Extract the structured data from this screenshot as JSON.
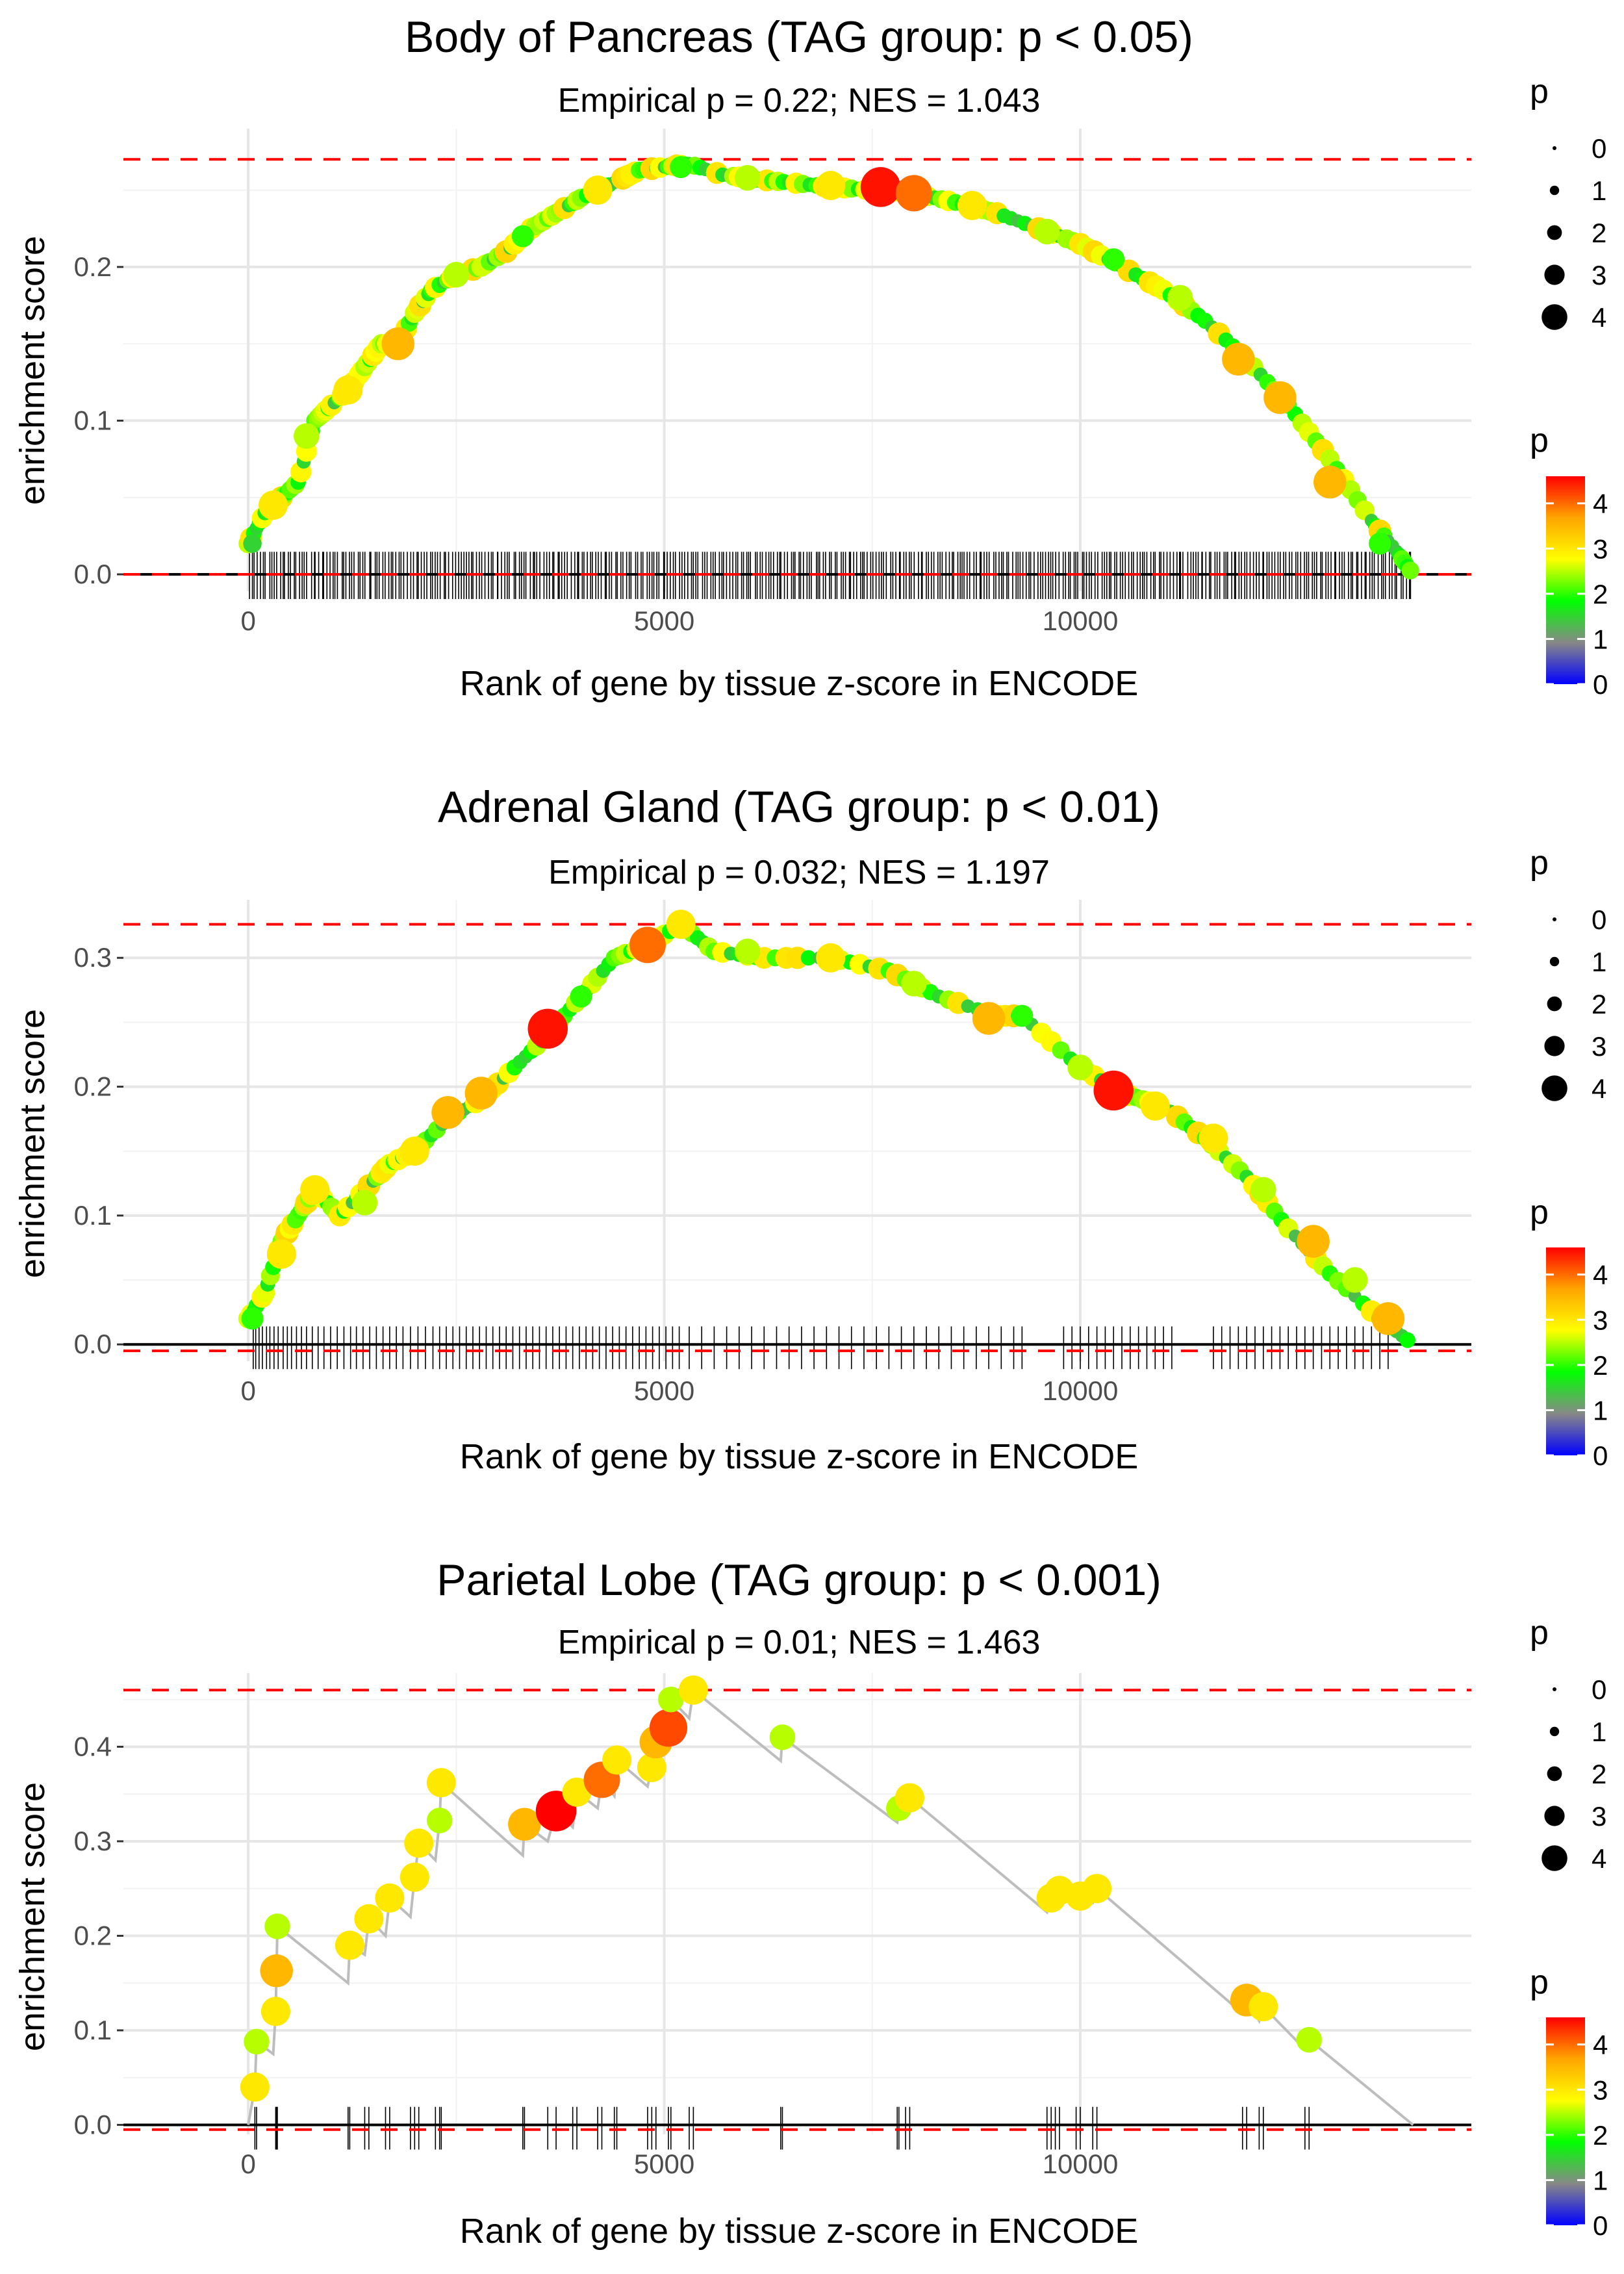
{
  "legend": {
    "size_title": "p",
    "size_levels": [
      "0",
      "1",
      "2",
      "3",
      "4"
    ],
    "color_title": "p",
    "color_ticks": [
      "0",
      "1",
      "2",
      "3",
      "4"
    ],
    "color_range": [
      0,
      4.6
    ],
    "colors": [
      "#0000ff",
      "#888888",
      "#00ff00",
      "#ffff00",
      "#ffa500",
      "#ff0000"
    ]
  },
  "chart_data": [
    {
      "type": "scatter",
      "title": "Body of Pancreas (TAG group: p < 0.05)",
      "subtitle": "Empirical p = 0.22; NES = 1.043",
      "xlabel": "Rank of gene by tissue z-score in ENCODE",
      "ylabel": "enrichment score",
      "xlim": [
        -1500,
        14700
      ],
      "ylim": [
        -0.011,
        0.29
      ],
      "x_ticks": [
        0,
        5000,
        10000
      ],
      "x_tick_labels": [
        "0",
        "5000",
        "10000"
      ],
      "y_ticks": [
        0.0,
        0.1,
        0.2
      ],
      "y_tick_labels": [
        "0.0",
        "0.1",
        "0.2"
      ],
      "max_line": 0.27,
      "min_line": 0.0,
      "curve": [
        [
          0,
          0.02
        ],
        [
          200,
          0.04
        ],
        [
          400,
          0.05
        ],
        [
          600,
          0.06
        ],
        [
          800,
          0.1
        ],
        [
          1000,
          0.11
        ],
        [
          1200,
          0.12
        ],
        [
          1400,
          0.135
        ],
        [
          1600,
          0.15
        ],
        [
          1800,
          0.15
        ],
        [
          2000,
          0.17
        ],
        [
          2200,
          0.185
        ],
        [
          2500,
          0.195
        ],
        [
          2800,
          0.2
        ],
        [
          3100,
          0.21
        ],
        [
          3400,
          0.225
        ],
        [
          3700,
          0.235
        ],
        [
          4000,
          0.245
        ],
        [
          4400,
          0.255
        ],
        [
          4700,
          0.263
        ],
        [
          5000,
          0.265
        ],
        [
          5300,
          0.267
        ],
        [
          5700,
          0.26
        ],
        [
          6100,
          0.257
        ],
        [
          6500,
          0.255
        ],
        [
          7000,
          0.252
        ],
        [
          7500,
          0.25
        ],
        [
          8000,
          0.248
        ],
        [
          8500,
          0.242
        ],
        [
          9000,
          0.235
        ],
        [
          9500,
          0.225
        ],
        [
          10000,
          0.215
        ],
        [
          10500,
          0.2
        ],
        [
          11000,
          0.185
        ],
        [
          11500,
          0.165
        ],
        [
          12000,
          0.14
        ],
        [
          12500,
          0.11
        ],
        [
          13000,
          0.075
        ],
        [
          13500,
          0.035
        ],
        [
          13800,
          0.015
        ],
        [
          14000,
          0.0
        ]
      ],
      "points": [
        [
          50,
          0.02,
          1.5
        ],
        [
          300,
          0.045,
          3
        ],
        [
          700,
          0.09,
          2.5
        ],
        [
          1200,
          0.12,
          3
        ],
        [
          1800,
          0.15,
          3.5
        ],
        [
          2500,
          0.195,
          2.5
        ],
        [
          3300,
          0.22,
          2
        ],
        [
          4200,
          0.25,
          3
        ],
        [
          5200,
          0.265,
          2
        ],
        [
          6000,
          0.258,
          2.5
        ],
        [
          7000,
          0.253,
          3
        ],
        [
          7600,
          0.252,
          4.5
        ],
        [
          8000,
          0.248,
          4
        ],
        [
          8700,
          0.24,
          3
        ],
        [
          9600,
          0.223,
          2.5
        ],
        [
          10400,
          0.205,
          2
        ],
        [
          11200,
          0.18,
          2.5
        ],
        [
          11900,
          0.14,
          3.5
        ],
        [
          12400,
          0.115,
          3.5
        ],
        [
          13000,
          0.06,
          3.5
        ],
        [
          13600,
          0.02,
          2
        ]
      ],
      "ticks_note": "dense gene hits from 0 to 14000",
      "hits_range": [
        0,
        14000
      ],
      "hits_count": 420
    },
    {
      "type": "scatter",
      "title": "Adrenal Gland (TAG group: p < 0.01)",
      "subtitle": "Empirical p = 0.032; NES = 1.197",
      "xlabel": "Rank of gene by tissue z-score in ENCODE",
      "ylabel": "enrichment score",
      "xlim": [
        -1500,
        14700
      ],
      "ylim": [
        -0.013,
        0.345
      ],
      "x_ticks": [
        0,
        5000,
        10000
      ],
      "x_tick_labels": [
        "0",
        "5000",
        "10000"
      ],
      "y_ticks": [
        0.0,
        0.1,
        0.2,
        0.3
      ],
      "y_tick_labels": [
        "0.0",
        "0.1",
        "0.2",
        "0.3"
      ],
      "max_line": 0.326,
      "min_line": -0.005,
      "curve": [
        [
          0,
          0.02
        ],
        [
          200,
          0.04
        ],
        [
          400,
          0.08
        ],
        [
          600,
          0.1
        ],
        [
          800,
          0.12
        ],
        [
          1100,
          0.1
        ],
        [
          1400,
          0.12
        ],
        [
          1700,
          0.14
        ],
        [
          2000,
          0.15
        ],
        [
          2400,
          0.175
        ],
        [
          2800,
          0.19
        ],
        [
          3200,
          0.215
        ],
        [
          3600,
          0.24
        ],
        [
          4000,
          0.27
        ],
        [
          4400,
          0.3
        ],
        [
          4800,
          0.31
        ],
        [
          5200,
          0.326
        ],
        [
          5600,
          0.305
        ],
        [
          6200,
          0.3
        ],
        [
          7000,
          0.3
        ],
        [
          7700,
          0.29
        ],
        [
          8300,
          0.27
        ],
        [
          9000,
          0.255
        ],
        [
          9300,
          0.255
        ],
        [
          10000,
          0.215
        ],
        [
          10500,
          0.195
        ],
        [
          11000,
          0.185
        ],
        [
          11500,
          0.16
        ],
        [
          12000,
          0.13
        ],
        [
          12500,
          0.09
        ],
        [
          13000,
          0.055
        ],
        [
          13600,
          0.02
        ],
        [
          14000,
          0.0
        ]
      ],
      "points": [
        [
          50,
          0.02,
          2
        ],
        [
          400,
          0.07,
          3
        ],
        [
          800,
          0.12,
          3
        ],
        [
          1400,
          0.11,
          2.5
        ],
        [
          2000,
          0.15,
          3
        ],
        [
          2400,
          0.18,
          3.5
        ],
        [
          2800,
          0.195,
          3.5
        ],
        [
          3600,
          0.245,
          4.5
        ],
        [
          4000,
          0.27,
          2
        ],
        [
          4800,
          0.31,
          4
        ],
        [
          5200,
          0.326,
          3
        ],
        [
          6000,
          0.305,
          2.5
        ],
        [
          7000,
          0.3,
          3
        ],
        [
          8000,
          0.28,
          2.5
        ],
        [
          8900,
          0.253,
          3.5
        ],
        [
          9300,
          0.255,
          2
        ],
        [
          10000,
          0.215,
          2.5
        ],
        [
          10400,
          0.197,
          4.5
        ],
        [
          10900,
          0.185,
          3
        ],
        [
          11600,
          0.16,
          3
        ],
        [
          12200,
          0.12,
          2.5
        ],
        [
          12800,
          0.08,
          3.5
        ],
        [
          13300,
          0.05,
          2.5
        ],
        [
          13700,
          0.02,
          3.5
        ]
      ],
      "ticks_note": "gene hits with gaps",
      "hit_positions": [
        60,
        90,
        130,
        170,
        220,
        260,
        310,
        360,
        420,
        470,
        520,
        580,
        640,
        700,
        770,
        840,
        910,
        990,
        1070,
        1150,
        1230,
        1300,
        1380,
        1460,
        1540,
        1620,
        1700,
        1780,
        1860,
        1950,
        2040,
        2130,
        2220,
        2300,
        2380,
        2460,
        2540,
        2620,
        2700,
        2780,
        2860,
        2940,
        3020,
        3100,
        3180,
        3260,
        3340,
        3420,
        3500,
        3580,
        3660,
        3740,
        3820,
        3900,
        3980,
        4060,
        4140,
        4220,
        4300,
        4380,
        4460,
        4540,
        4620,
        4700,
        4780,
        4860,
        4940,
        5020,
        5100,
        5180,
        5300,
        5450,
        5600,
        5750,
        5900,
        6050,
        6200,
        6350,
        6500,
        6650,
        6800,
        6950,
        7100,
        7250,
        7400,
        7550,
        7700,
        7850,
        8000,
        8150,
        8300,
        8450,
        8600,
        8750,
        8900,
        9050,
        9200,
        9300,
        9800,
        9900,
        10000,
        10100,
        10200,
        10300,
        10400,
        10500,
        10600,
        10700,
        10800,
        10900,
        11000,
        11100,
        11600,
        11700,
        11800,
        11900,
        12000,
        12100,
        12200,
        12300,
        12400,
        12500,
        12600,
        12700,
        12800,
        12900,
        13000,
        13100,
        13200,
        13300,
        13400,
        13500,
        13600,
        13700
      ]
    },
    {
      "type": "scatter",
      "title": "Parietal Lobe (TAG group: p < 0.001)",
      "subtitle": "Empirical p = 0.01; NES = 1.463",
      "xlabel": "Rank of gene by tissue z-score in ENCODE",
      "ylabel": "enrichment score",
      "xlim": [
        -1500,
        14700
      ],
      "ylim": [
        -0.01,
        0.478
      ],
      "x_ticks": [
        0,
        5000,
        10000
      ],
      "x_tick_labels": [
        "0",
        "5000",
        "10000"
      ],
      "y_ticks": [
        0.0,
        0.1,
        0.2,
        0.3,
        0.4
      ],
      "y_tick_labels": [
        "0.0",
        "0.1",
        "0.2",
        "0.3",
        "0.4"
      ],
      "max_line": 0.46,
      "min_line": -0.005,
      "curve": [
        [
          0,
          0.0
        ],
        [
          80,
          0.04
        ],
        [
          80,
          0.04
        ],
        [
          100,
          0.088
        ],
        [
          300,
          0.075
        ],
        [
          330,
          0.12
        ],
        [
          340,
          0.163
        ],
        [
          350,
          0.21
        ],
        [
          1200,
          0.15
        ],
        [
          1220,
          0.19
        ],
        [
          1400,
          0.18
        ],
        [
          1450,
          0.218
        ],
        [
          1650,
          0.2
        ],
        [
          1700,
          0.24
        ],
        [
          1950,
          0.22
        ],
        [
          2000,
          0.262
        ],
        [
          2050,
          0.298
        ],
        [
          2250,
          0.28
        ],
        [
          2300,
          0.322
        ],
        [
          2320,
          0.362
        ],
        [
          3300,
          0.285
        ],
        [
          3320,
          0.318
        ],
        [
          3600,
          0.3
        ],
        [
          3700,
          0.332
        ],
        [
          3900,
          0.315
        ],
        [
          3950,
          0.352
        ],
        [
          4200,
          0.335
        ],
        [
          4250,
          0.365
        ],
        [
          4400,
          0.348
        ],
        [
          4430,
          0.386
        ],
        [
          4800,
          0.358
        ],
        [
          4850,
          0.378
        ],
        [
          4900,
          0.405
        ],
        [
          5050,
          0.42
        ],
        [
          5080,
          0.45
        ],
        [
          5300,
          0.43
        ],
        [
          5350,
          0.46
        ],
        [
          6400,
          0.385
        ],
        [
          6420,
          0.41
        ],
        [
          7800,
          0.32
        ],
        [
          7820,
          0.335
        ],
        [
          7900,
          0.33
        ],
        [
          7950,
          0.346
        ],
        [
          9600,
          0.225
        ],
        [
          9650,
          0.24
        ],
        [
          9700,
          0.235
        ],
        [
          9750,
          0.248
        ],
        [
          9950,
          0.232
        ],
        [
          10000,
          0.242
        ],
        [
          10150,
          0.235
        ],
        [
          10200,
          0.25
        ],
        [
          11950,
          0.118
        ],
        [
          12000,
          0.132
        ],
        [
          12150,
          0.11
        ],
        [
          12200,
          0.125
        ],
        [
          12700,
          0.08
        ],
        [
          12750,
          0.09
        ],
        [
          14000,
          0.0
        ]
      ],
      "points": [
        [
          80,
          0.04,
          3
        ],
        [
          100,
          0.088,
          2.5
        ],
        [
          330,
          0.12,
          3
        ],
        [
          340,
          0.163,
          3.5
        ],
        [
          350,
          0.21,
          2.5
        ],
        [
          1220,
          0.19,
          3
        ],
        [
          1450,
          0.218,
          3
        ],
        [
          1700,
          0.24,
          3
        ],
        [
          2000,
          0.262,
          3
        ],
        [
          2050,
          0.298,
          3
        ],
        [
          2300,
          0.322,
          2.5
        ],
        [
          2320,
          0.362,
          3
        ],
        [
          3320,
          0.318,
          3.5
        ],
        [
          3700,
          0.332,
          4.6
        ],
        [
          3950,
          0.352,
          3
        ],
        [
          4250,
          0.365,
          4
        ],
        [
          4430,
          0.386,
          3
        ],
        [
          4850,
          0.378,
          3
        ],
        [
          4900,
          0.405,
          3.5
        ],
        [
          5050,
          0.42,
          4.2
        ],
        [
          5080,
          0.45,
          2.5
        ],
        [
          5350,
          0.46,
          3
        ],
        [
          6420,
          0.41,
          2.5
        ],
        [
          7820,
          0.335,
          2.5
        ],
        [
          7950,
          0.346,
          3
        ],
        [
          9650,
          0.24,
          3
        ],
        [
          9750,
          0.248,
          3
        ],
        [
          10000,
          0.242,
          3
        ],
        [
          10200,
          0.25,
          3
        ],
        [
          12000,
          0.132,
          3.5
        ],
        [
          12200,
          0.125,
          3
        ],
        [
          12750,
          0.09,
          2.5
        ]
      ],
      "ticks_note": "sparse gene hits",
      "hit_positions": [
        80,
        100,
        330,
        340,
        350,
        1200,
        1220,
        1400,
        1450,
        1650,
        1700,
        1950,
        2000,
        2050,
        2250,
        2300,
        2320,
        3300,
        3320,
        3600,
        3700,
        3900,
        3950,
        4200,
        4250,
        4400,
        4430,
        4800,
        4850,
        4900,
        5050,
        5080,
        5300,
        5350,
        6400,
        6420,
        7800,
        7820,
        7900,
        7950,
        9600,
        9650,
        9700,
        9750,
        9950,
        10000,
        10150,
        10200,
        11950,
        12000,
        12150,
        12200,
        12700,
        12750
      ]
    }
  ]
}
